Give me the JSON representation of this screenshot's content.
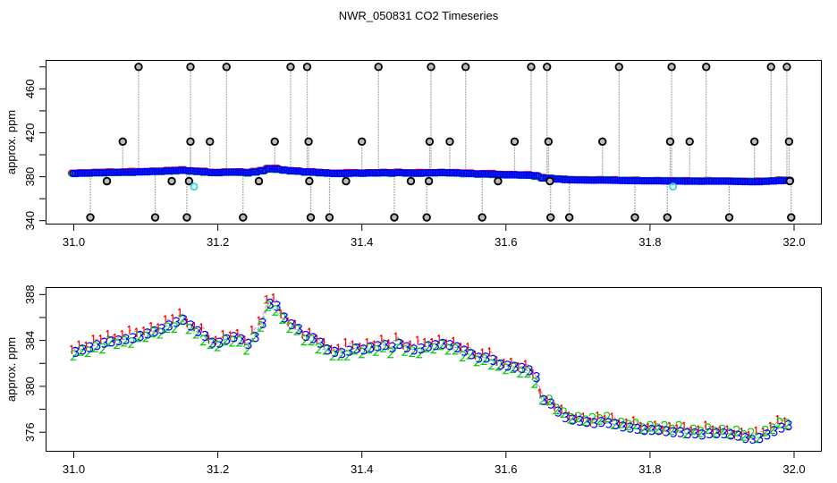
{
  "title": "NWR_050831  CO2 Timeseries",
  "colors": {
    "series1": "#ff0000",
    "series2": "#00cc00",
    "series3": "#0000ff",
    "outlier": "#000000",
    "flagged": "#22dddd",
    "connector": "#aaaaaa"
  },
  "chart_data": [
    {
      "type": "scatter",
      "ylabel": "approx. ppm",
      "xlim": [
        31.0,
        32.0
      ],
      "ylim": [
        340,
        480
      ],
      "xticks": [
        "31.0",
        "31.2",
        "31.4",
        "31.6",
        "31.8",
        "32.0"
      ],
      "yticks": [
        "340",
        "380",
        "420",
        "460"
      ],
      "ytick_minor": [
        360,
        400,
        440,
        480
      ],
      "marker": "circle",
      "outliers": {
        "x_480": [
          31.09,
          31.162,
          31.212,
          31.301,
          31.324,
          31.423,
          31.496,
          31.544,
          31.635,
          31.657,
          31.757,
          31.83,
          31.878,
          31.968,
          31.99
        ],
        "x_412": [
          31.068,
          31.162,
          31.189,
          31.279,
          31.326,
          31.4,
          31.494,
          31.522,
          31.612,
          31.659,
          31.734,
          31.828,
          31.855,
          31.945,
          31.993
        ],
        "x_376": [
          31.046,
          31.136,
          31.16,
          31.257,
          31.327,
          31.378,
          31.468,
          31.493,
          31.589,
          31.661,
          31.994
        ],
        "x_343": [
          31.023,
          31.113,
          31.157,
          31.235,
          31.329,
          31.355,
          31.445,
          31.49,
          31.567,
          31.662,
          31.688,
          31.779,
          31.824,
          31.91,
          31.996
        ]
      },
      "flagged": [
        {
          "x": 31.167,
          "y": 371
        },
        {
          "x": 31.832,
          "y": 371
        }
      ]
    },
    {
      "type": "scatter",
      "ylabel": "approx. ppm",
      "xlim": [
        31.0,
        32.0
      ],
      "ylim": [
        375.3,
        388.6
      ],
      "xticks": [
        "31.0",
        "31.2",
        "31.4",
        "31.6",
        "31.8",
        "32.0"
      ],
      "yticks": [
        "376",
        "380",
        "384",
        "388"
      ],
      "ytick_minor": [
        378,
        382,
        386
      ],
      "marker": "series number",
      "x_start": 31.0,
      "x_step": 0.01,
      "series": [
        {
          "name": "1",
          "values": [
            383.2,
            383.6,
            383.5,
            384.1,
            384.1,
            384.5,
            384.2,
            384.5,
            384.9,
            384.7,
            384.8,
            385.2,
            385.1,
            385.8,
            385.9,
            386.4,
            385.5,
            385.2,
            385.1,
            384.1,
            384.0,
            384.5,
            384.4,
            384.6,
            384.0,
            384.9,
            385.7,
            387.6,
            387.7,
            386.3,
            385.6,
            385.4,
            384.5,
            384.7,
            384.1,
            383.8,
            383.2,
            383.3,
            383.8,
            383.6,
            383.4,
            383.8,
            383.6,
            384.1,
            383.7,
            384.3,
            383.6,
            383.6,
            384.0,
            383.8,
            383.8,
            384.1,
            383.7,
            383.9,
            383.4,
            383.4,
            382.7,
            382.9,
            383.0,
            382.2,
            382.0,
            382.1,
            381.7,
            381.9,
            381.1,
            379.4,
            378.7,
            378.2,
            378.0,
            377.4,
            377.2,
            377.3,
            376.9,
            377.4,
            377.1,
            377.3,
            376.7,
            376.8,
            377.0,
            376.5,
            376.4,
            376.6,
            376.2,
            376.5,
            376.3,
            376.5,
            376.1,
            376.2,
            376.6,
            376.2,
            376.1,
            376.2,
            375.8,
            376.0,
            375.7,
            376.1,
            376.0,
            376.5,
            377.1,
            376.9
          ]
        },
        {
          "name": "2",
          "values": [
            382.7,
            383.1,
            383.0,
            383.4,
            383.3,
            383.9,
            383.7,
            383.9,
            383.8,
            384.3,
            384.3,
            384.7,
            384.6,
            385.1,
            385.1,
            385.8,
            385.0,
            384.6,
            384.0,
            383.7,
            383.5,
            384.0,
            383.9,
            383.9,
            383.2,
            384.3,
            385.2,
            387.0,
            386.6,
            385.9,
            385.1,
            384.9,
            384.0,
            384.0,
            383.3,
            383.2,
            382.7,
            382.7,
            382.7,
            383.2,
            382.9,
            383.3,
            383.1,
            383.4,
            382.9,
            383.7,
            383.1,
            383.0,
            382.9,
            383.4,
            383.3,
            383.6,
            383.2,
            383.2,
            382.6,
            382.8,
            382.2,
            382.3,
            381.9,
            381.8,
            381.5,
            381.6,
            381.2,
            381.2,
            380.3,
            378.8,
            378.8,
            378.0,
            377.7,
            377.2,
            377.3,
            377.0,
            377.2,
            377.1,
            377.3,
            376.7,
            376.8,
            376.6,
            376.7,
            376.3,
            376.5,
            376.3,
            376.5,
            376.2,
            376.5,
            375.9,
            376.2,
            376.0,
            376.3,
            376.0,
            376.2,
            375.9,
            376.1,
            375.7,
            375.9,
            375.5,
            376.1,
            376.3,
            376.8,
            376.7
          ]
        },
        {
          "name": "3",
          "values": [
            383.0,
            383.2,
            383.4,
            383.6,
            383.8,
            383.9,
            384.0,
            384.1,
            384.2,
            384.4,
            384.6,
            384.8,
            385.0,
            385.3,
            385.6,
            385.8,
            385.3,
            384.8,
            384.4,
            383.8,
            383.8,
            384.1,
            384.3,
            384.1,
            383.7,
            384.3,
            385.5,
            387.2,
            387.0,
            386.0,
            385.4,
            385.0,
            384.4,
            384.2,
            383.8,
            383.2,
            383.0,
            382.9,
            383.1,
            383.3,
            383.2,
            383.4,
            383.5,
            383.6,
            383.4,
            383.7,
            383.4,
            383.2,
            383.3,
            383.5,
            383.6,
            383.7,
            383.6,
            383.4,
            383.1,
            382.8,
            382.5,
            382.5,
            382.3,
            381.9,
            381.8,
            381.7,
            381.6,
            381.4,
            380.8,
            378.8,
            378.5,
            377.8,
            377.3,
            377.1,
            377.0,
            376.9,
            376.8,
            376.9,
            376.8,
            376.7,
            376.5,
            376.4,
            376.3,
            376.2,
            376.2,
            376.2,
            376.1,
            376.0,
            376.0,
            375.9,
            375.9,
            375.8,
            375.9,
            375.9,
            375.9,
            375.8,
            375.7,
            375.5,
            375.4,
            375.5,
            375.8,
            376.1,
            376.4,
            376.6
          ]
        }
      ]
    }
  ]
}
